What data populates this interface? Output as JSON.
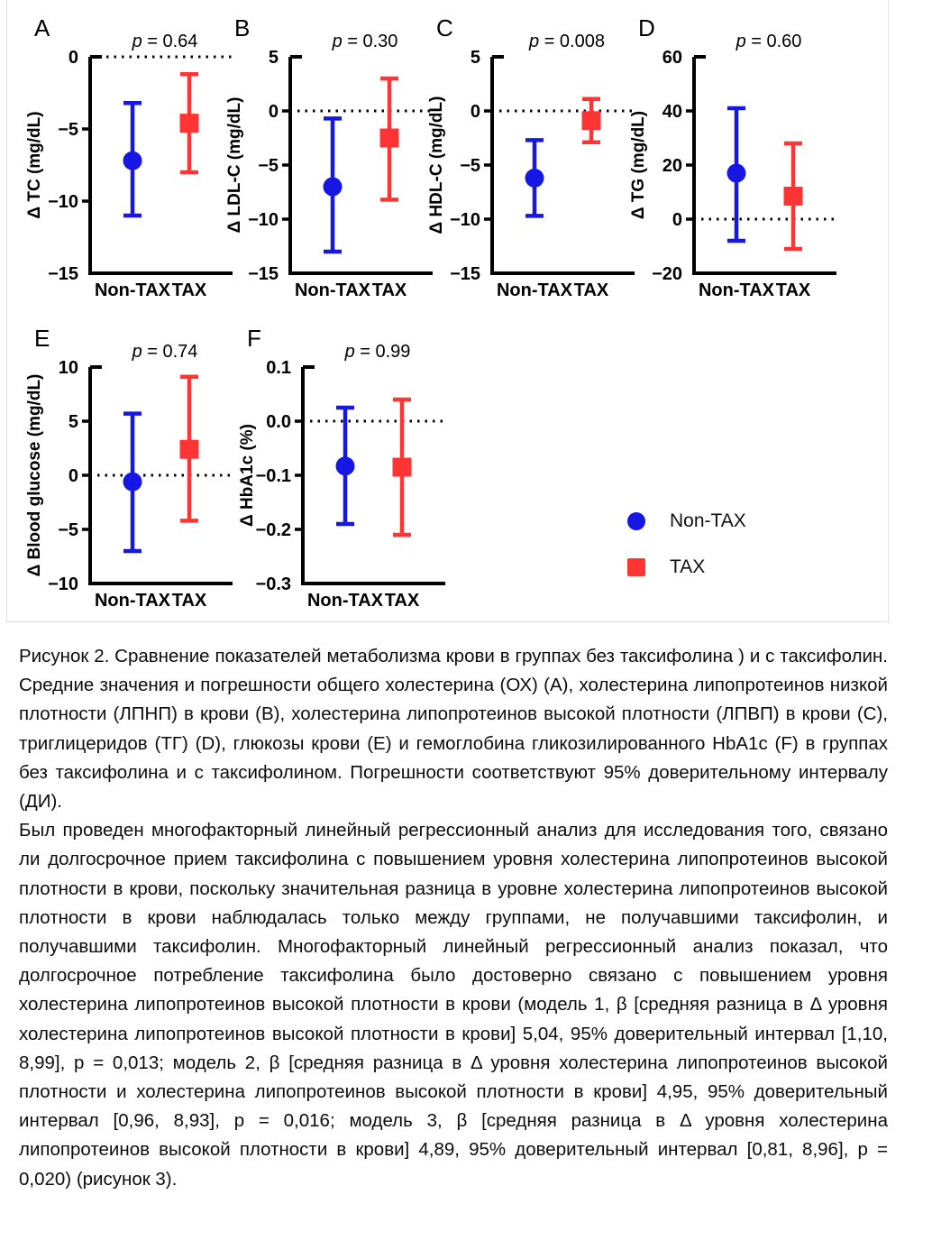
{
  "figure": {
    "border_color": "#dedede",
    "colors": {
      "non_tax": "#1717e3",
      "tax": "#ff3434",
      "axis": "#000000"
    },
    "legend": [
      {
        "marker": "circle",
        "label": "Non-TAX",
        "color": "#1717e3"
      },
      {
        "marker": "square",
        "label": "TAX",
        "color": "#ff3434"
      }
    ]
  },
  "chart_data": [
    {
      "id": "A",
      "type": "scatter",
      "p_prefix": "p",
      "p_value": "= 0.64",
      "ylabel": "Δ TC (mg/dL)",
      "ylim": [
        -15,
        0
      ],
      "yticks": [
        0,
        -5,
        -10,
        -15
      ],
      "ytick_labels": [
        "0",
        "−5",
        "−10",
        "−15"
      ],
      "zero_line": 0,
      "categories": [
        "Non-TAX",
        "TAX"
      ],
      "series": [
        {
          "name": "Non-TAX",
          "marker": "circle",
          "color": "#1717e3",
          "mean": -7.2,
          "ci95": [
            -11.0,
            -3.2
          ]
        },
        {
          "name": "TAX",
          "marker": "square",
          "color": "#ff3434",
          "mean": -4.6,
          "ci95": [
            -8.0,
            -1.2
          ]
        }
      ]
    },
    {
      "id": "B",
      "type": "scatter",
      "p_prefix": "p",
      "p_value": "= 0.30",
      "ylabel": "Δ LDL-C (mg/dL)",
      "ylim": [
        -15,
        5
      ],
      "yticks": [
        5,
        0,
        -5,
        -10,
        -15
      ],
      "ytick_labels": [
        "5",
        "0",
        "−5",
        "−10",
        "−15"
      ],
      "zero_line": 0,
      "categories": [
        "Non-TAX",
        "TAX"
      ],
      "series": [
        {
          "name": "Non-TAX",
          "marker": "circle",
          "color": "#1717e3",
          "mean": -7.0,
          "ci95": [
            -13.0,
            -0.7
          ]
        },
        {
          "name": "TAX",
          "marker": "square",
          "color": "#ff3434",
          "mean": -2.5,
          "ci95": [
            -8.2,
            3.0
          ]
        }
      ]
    },
    {
      "id": "C",
      "type": "scatter",
      "p_prefix": "p",
      "p_value": "= 0.008",
      "ylabel": "Δ HDL-C (mg/dL)",
      "ylim": [
        -15,
        5
      ],
      "yticks": [
        5,
        0,
        -5,
        -10,
        -15
      ],
      "ytick_labels": [
        "5",
        "0",
        "−5",
        "−10",
        "−15"
      ],
      "zero_line": 0,
      "categories": [
        "Non-TAX",
        "TAX"
      ],
      "series": [
        {
          "name": "Non-TAX",
          "marker": "circle",
          "color": "#1717e3",
          "mean": -6.2,
          "ci95": [
            -9.7,
            -2.7
          ]
        },
        {
          "name": "TAX",
          "marker": "square",
          "color": "#ff3434",
          "mean": -0.9,
          "ci95": [
            -2.9,
            1.1
          ]
        }
      ]
    },
    {
      "id": "D",
      "type": "scatter",
      "p_prefix": "p",
      "p_value": "= 0.60",
      "ylabel": "Δ TG (mg/dL)",
      "ylim": [
        -20,
        60
      ],
      "yticks": [
        60,
        40,
        20,
        0,
        -20
      ],
      "ytick_labels": [
        "60",
        "40",
        "20",
        "0",
        "−20"
      ],
      "zero_line": 0,
      "categories": [
        "Non-TAX",
        "TAX"
      ],
      "series": [
        {
          "name": "Non-TAX",
          "marker": "circle",
          "color": "#1717e3",
          "mean": 17,
          "ci95": [
            -8,
            41
          ]
        },
        {
          "name": "TAX",
          "marker": "square",
          "color": "#ff3434",
          "mean": 8.5,
          "ci95": [
            -11,
            28
          ]
        }
      ]
    },
    {
      "id": "E",
      "type": "scatter",
      "p_prefix": "p",
      "p_value": "= 0.74",
      "ylabel": "Δ Blood glucose (mg/dL)",
      "ylim": [
        -10,
        10
      ],
      "yticks": [
        10,
        5,
        0,
        -5,
        -10
      ],
      "ytick_labels": [
        "10",
        "5",
        "0",
        "−5",
        "−10"
      ],
      "zero_line": 0,
      "categories": [
        "Non-TAX",
        "TAX"
      ],
      "series": [
        {
          "name": "Non-TAX",
          "marker": "circle",
          "color": "#1717e3",
          "mean": -0.6,
          "ci95": [
            -7.0,
            5.7
          ]
        },
        {
          "name": "TAX",
          "marker": "square",
          "color": "#ff3434",
          "mean": 2.4,
          "ci95": [
            -4.2,
            9.1
          ]
        }
      ]
    },
    {
      "id": "F",
      "type": "scatter",
      "p_prefix": "p",
      "p_value": "= 0.99",
      "ylabel": "Δ HbA1c (%)",
      "ylim": [
        -0.3,
        0.1
      ],
      "yticks": [
        0.1,
        0.0,
        -0.1,
        -0.2,
        -0.3
      ],
      "ytick_labels": [
        "0.1",
        "0.0",
        "−0.1",
        "−0.2",
        "−0.3"
      ],
      "zero_line": 0,
      "categories": [
        "Non-TAX",
        "TAX"
      ],
      "series": [
        {
          "name": "Non-TAX",
          "marker": "circle",
          "color": "#1717e3",
          "mean": -0.083,
          "ci95": [
            -0.19,
            0.025
          ]
        },
        {
          "name": "TAX",
          "marker": "square",
          "color": "#ff3434",
          "mean": -0.085,
          "ci95": [
            -0.21,
            0.04
          ]
        }
      ]
    }
  ],
  "caption": {
    "paragraph1": "Рисунок 2. Сравнение показателей метаболизма крови в группах без таксифолина ) и  с таксифолин. Средние значения и погрешности общего холестерина (ОХ) (А), холестерина липопротеинов низкой плотности (ЛПНП) в крови (В), холестерина липопротеинов высокой плотности (ЛПВП) в крови (С), триглицеридов (ТГ) (D), глюкозы крови (Е) и  гемоглобина гликозилированного  HbA1c (F) в группах без таксифолина  и с таксифолином. Погрешности соответствуют 95% доверительному интервалу (ДИ).",
    "paragraph2": "Был проведен многофакторный линейный регрессионный анализ для исследования того, связано ли долгосрочное прием таксифолина  с повышением уровня холестерина липопротеинов высокой плотности  в крови, поскольку значительная разница в уровне холестерина липопротеинов высокой плотности в крови наблюдалась только между группами, не получавшими таксифолин, и получавшими таксифолин. Многофакторный линейный регрессионный анализ показал, что долгосрочное потребление таксифолина было достоверно связано с повышением уровня холестерина липопротеинов высокой плотности  в крови (модель 1, β [средняя разница в Δ уровня  холестерина липопротеинов высокой плотности  в крови] 5,04, 95% доверительный интервал  [1,10, 8,99], p = 0,013; модель 2, β [средняя разница в Δ уровня холестерина липопротеинов высокой плотности и  холестерина липопротеинов высокой плотности  в крови] 4,95, 95% доверительный интервал  [0,96, 8,93], p = 0,016; модель 3, β [средняя разница в Δ уровня холестерина липопротеинов высокой плотности в крови] 4,89, 95% доверительный интервал  [0,81, 8,96], p = 0,020) (рисунок 3)."
  }
}
